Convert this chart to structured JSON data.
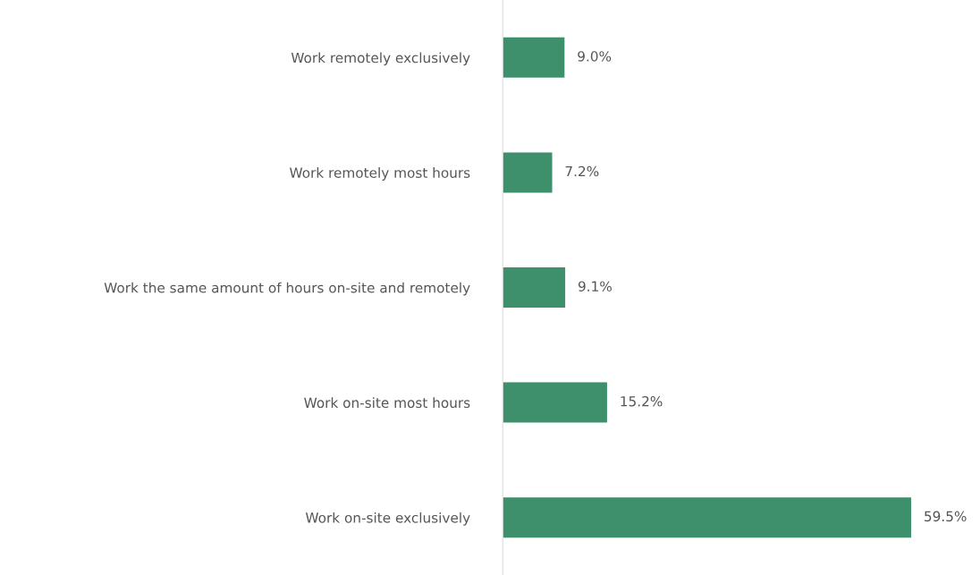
{
  "chart_data": {
    "type": "bar",
    "orientation": "horizontal",
    "categories": [
      "Work remotely exclusively",
      "Work remotely most hours",
      "Work the same amount of hours on-site and remotely",
      "Work on-site most hours",
      "Work on-site exclusively"
    ],
    "values": [
      9.0,
      7.2,
      9.1,
      15.2,
      59.5
    ],
    "value_labels": [
      "9.0%",
      "7.2%",
      "9.1%",
      "15.2%",
      "59.5%"
    ],
    "color": "#3e8f6c",
    "grid": false,
    "tick_labels": "y"
  }
}
